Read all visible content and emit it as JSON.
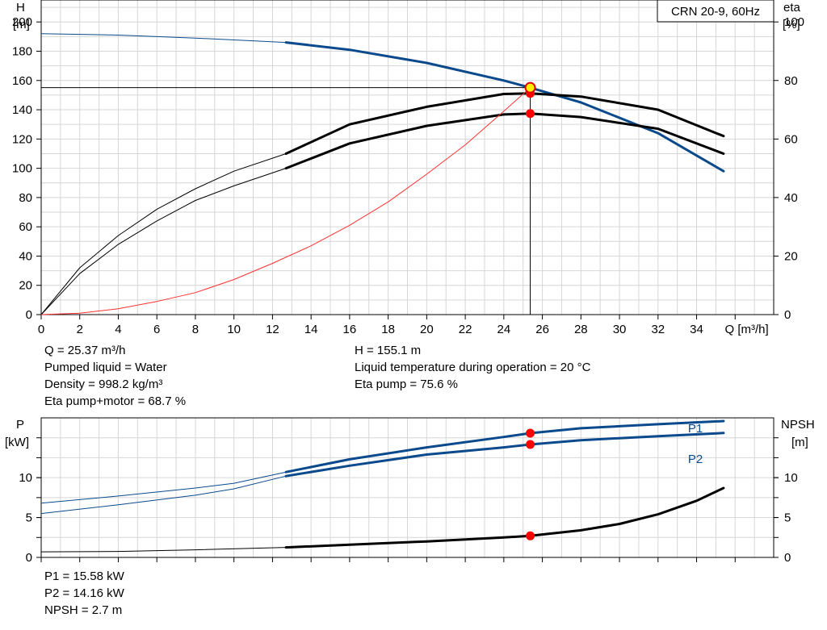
{
  "chart_data": [
    {
      "type": "line",
      "title": "CRN 20-9, 60Hz",
      "xlabel": "Q [m³/h]",
      "ylabel_left": "H",
      "ylabel_left_unit": "[m]",
      "ylabel_right": "eta",
      "ylabel_right_unit": "[%]",
      "xlim": [
        0,
        38
      ],
      "ylim_left": [
        0,
        215
      ],
      "ylim_right": [
        0,
        100
      ],
      "x_ticks": [
        0,
        2,
        4,
        6,
        8,
        10,
        12,
        14,
        16,
        18,
        20,
        22,
        24,
        26,
        28,
        30,
        32,
        34
      ],
      "y_ticks_left": [
        0,
        20,
        40,
        60,
        80,
        100,
        120,
        140,
        160,
        180,
        200
      ],
      "y_ticks_right": [
        0,
        20,
        40,
        60,
        80,
        100
      ],
      "grid": true,
      "series": [
        {
          "key": "H",
          "axis": "left",
          "color": "#0a4a8c",
          "x": [
            0,
            4,
            8,
            12.7,
            16,
            20,
            24,
            25.37,
            28,
            32,
            35.4
          ],
          "y": [
            192,
            191,
            189,
            186,
            181,
            172,
            160,
            155.1,
            145,
            124,
            98
          ],
          "thin_until": 12.7
        },
        {
          "key": "eta_pump",
          "axis": "right",
          "color": "#000000",
          "x": [
            0,
            2,
            4,
            6,
            8,
            10,
            12.7,
            16,
            20,
            24,
            25.37,
            28,
            32,
            35.4
          ],
          "y": [
            0,
            16,
            27,
            36,
            43,
            49,
            55,
            65,
            71,
            75.4,
            75.6,
            74.5,
            70,
            61
          ],
          "thin_until": 12.7
        },
        {
          "key": "eta_pump_motor",
          "axis": "right",
          "color": "#000000",
          "x": [
            0,
            2,
            4,
            6,
            8,
            10,
            12.7,
            16,
            20,
            24,
            25.37,
            28,
            32,
            35.4
          ],
          "y": [
            0,
            14,
            24,
            32,
            39,
            44,
            50,
            58.5,
            64.5,
            68.4,
            68.7,
            67.5,
            63.5,
            55
          ],
          "thin_until": 12.7
        },
        {
          "key": "system_curve",
          "axis": "left",
          "color": "#ff3030",
          "x": [
            0,
            2,
            4,
            6,
            8,
            10,
            12,
            14,
            16,
            18,
            20,
            22,
            24,
            25.37
          ],
          "y": [
            0,
            1,
            4,
            9,
            15,
            24,
            35,
            47,
            61,
            77,
            96,
            116,
            139,
            155.1
          ]
        }
      ],
      "operating_point": {
        "x": 25.37,
        "y": 155.1,
        "eta_pump": 75.6,
        "eta_pump_motor": 68.7
      }
    },
    {
      "type": "line",
      "xlim": [
        0,
        38
      ],
      "ylabel_left": "P",
      "ylabel_left_unit": "[kW]",
      "ylabel_right": "NPSH",
      "ylabel_right_unit": "[m]",
      "ylim_left": [
        0,
        17.5
      ],
      "ylim_right": [
        0,
        17.5
      ],
      "y_ticks_left": [
        0,
        5,
        10
      ],
      "y_ticks_right": [
        0,
        5,
        10
      ],
      "grid": true,
      "series": [
        {
          "name": "P1",
          "axis": "left",
          "color": "#0a4a8c",
          "x": [
            0,
            4,
            8,
            10,
            12.7,
            16,
            20,
            24,
            25.37,
            28,
            32,
            35.4
          ],
          "y": [
            6.8,
            7.7,
            8.7,
            9.3,
            10.7,
            12.3,
            13.8,
            15.1,
            15.58,
            16.2,
            16.7,
            17.1
          ],
          "thin_until": 12.7
        },
        {
          "name": "P2",
          "axis": "left",
          "color": "#0a4a8c",
          "x": [
            0,
            4,
            8,
            10,
            12.7,
            16,
            20,
            24,
            25.37,
            28,
            32,
            35.4
          ],
          "y": [
            5.5,
            6.6,
            7.8,
            8.6,
            10.2,
            11.5,
            12.9,
            13.8,
            14.16,
            14.7,
            15.2,
            15.6
          ],
          "thin_until": 12.7
        },
        {
          "key": "NPSH",
          "axis": "right",
          "color": "#000000",
          "x": [
            0,
            4,
            8,
            12.7,
            16,
            20,
            24,
            25.37,
            28,
            30,
            32,
            34,
            35.4
          ],
          "y": [
            0.7,
            0.75,
            0.95,
            1.25,
            1.6,
            2.0,
            2.5,
            2.7,
            3.4,
            4.2,
            5.4,
            7.1,
            8.7
          ],
          "thin_until": 12.7
        }
      ],
      "operating_point": {
        "x": 25.37,
        "P1": 15.58,
        "P2": 14.16,
        "NPSH": 2.7
      }
    }
  ],
  "info_top_left": [
    "Q = 25.37 m³/h",
    "Pumped liquid = Water",
    "Density = 998.2 kg/m³",
    "Eta pump+motor = 68.7 %"
  ],
  "info_top_right": [
    "H = 155.1 m",
    "Liquid temperature during operation = 20 °C",
    "Eta pump = 75.6 %"
  ],
  "info_bottom": [
    "P1 = 15.58 kW",
    "P2 = 14.16 kW",
    "NPSH = 2.7 m"
  ]
}
